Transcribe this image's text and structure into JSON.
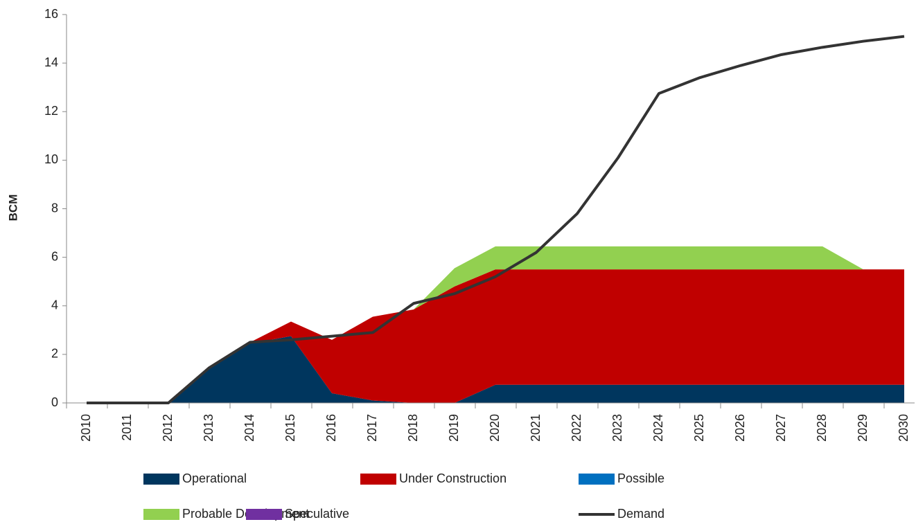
{
  "chart_data": {
    "type": "stacked_area_line",
    "y_label": "BCM",
    "categories": [
      "2010",
      "2011",
      "2012",
      "2013",
      "2014",
      "2015",
      "2016",
      "2017",
      "2018",
      "2019",
      "2020",
      "2021",
      "2022",
      "2023",
      "2024",
      "2025",
      "2026",
      "2027",
      "2028",
      "2029",
      "2030"
    ],
    "series": [
      {
        "name": "Operational",
        "color": "#00365e",
        "kind": "area",
        "values": [
          0,
          0,
          0,
          1.4,
          2.45,
          2.75,
          0.4,
          0.1,
          0,
          0,
          0.75,
          0.75,
          0.75,
          0.75,
          0.75,
          0.75,
          0.75,
          0.75,
          0.75,
          0.75,
          0.75
        ]
      },
      {
        "name": "Under Construction",
        "color": "#c00000",
        "kind": "area",
        "values": [
          0,
          0,
          0,
          0,
          0.05,
          0.6,
          2.2,
          3.45,
          3.85,
          4.8,
          4.75,
          4.75,
          4.75,
          4.75,
          4.75,
          4.75,
          4.75,
          4.75,
          4.75,
          4.75,
          4.75
        ]
      },
      {
        "name": "Possible",
        "color": "#0070c0",
        "kind": "area",
        "values": [
          0,
          0,
          0,
          0,
          0,
          0,
          0,
          0,
          0,
          0,
          0,
          0,
          0,
          0,
          0,
          0,
          0,
          0,
          0,
          0,
          0
        ]
      },
      {
        "name": "Probable Development",
        "color": "#92d050",
        "kind": "area",
        "values": [
          0,
          0,
          0,
          0,
          0,
          0,
          0,
          0,
          0,
          0.75,
          0.95,
          0.95,
          0.95,
          0.95,
          0.95,
          0.95,
          0.95,
          0.95,
          0.95,
          0,
          0
        ]
      },
      {
        "name": "Speculative",
        "color": "#7030a0",
        "kind": "area",
        "values": [
          0,
          0,
          0,
          0,
          0,
          0,
          0,
          0,
          0,
          0,
          0,
          0,
          0,
          0,
          0,
          0,
          0,
          0,
          0,
          0,
          0
        ]
      },
      {
        "name": "Demand",
        "color": "#333333",
        "kind": "line",
        "values": [
          0,
          0,
          0,
          1.45,
          2.5,
          2.6,
          2.75,
          2.9,
          4.1,
          4.5,
          5.2,
          6.2,
          7.8,
          10.1,
          12.75,
          13.4,
          13.9,
          14.35,
          14.65,
          14.9,
          15.1
        ]
      }
    ],
    "ylim": [
      0,
      16
    ],
    "yticks": [
      0,
      2,
      4,
      6,
      8,
      10,
      12,
      14,
      16
    ]
  }
}
